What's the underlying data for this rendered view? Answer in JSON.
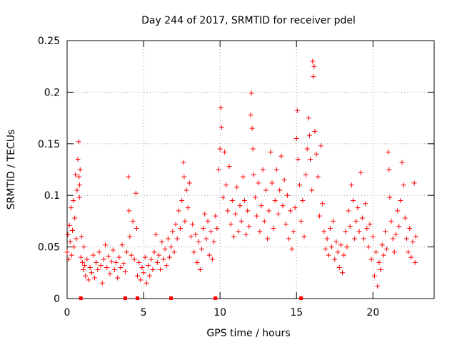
{
  "chart_data": {
    "type": "scatter",
    "title": "Day 244 of 2017, SRMTID for receiver pdel",
    "xlabel": "GPS time / hours",
    "ylabel": "SRMTID / TECUs",
    "xlim": [
      0,
      24
    ],
    "ylim": [
      0,
      0.25
    ],
    "xticks": [
      0,
      5,
      10,
      15,
      20
    ],
    "xtick_labels": [
      "0",
      "5",
      "10",
      "15",
      "20"
    ],
    "yticks": [
      0,
      0.05,
      0.1,
      0.15,
      0.2,
      0.25
    ],
    "ytick_labels": [
      "0",
      "0.05",
      "0.1",
      "0.15",
      "0.2",
      "0.25"
    ],
    "grid": true,
    "series": [
      {
        "name": "SRMTID",
        "marker": "plus",
        "color": "#ff0000",
        "points": [
          [
            0.0,
            0.045
          ],
          [
            0.05,
            0.062
          ],
          [
            0.1,
            0.038
          ],
          [
            0.15,
            0.071
          ],
          [
            0.2,
            0.055
          ],
          [
            0.25,
            0.088
          ],
          [
            0.3,
            0.042
          ],
          [
            0.35,
            0.066
          ],
          [
            0.4,
            0.095
          ],
          [
            0.45,
            0.05
          ],
          [
            0.5,
            0.078
          ],
          [
            0.55,
            0.12
          ],
          [
            0.6,
            0.058
          ],
          [
            0.65,
            0.105
          ],
          [
            0.7,
            0.135
          ],
          [
            0.75,
            0.152
          ],
          [
            0.78,
            0.118
          ],
          [
            0.8,
            0.098
          ],
          [
            0.82,
            0.11
          ],
          [
            0.85,
            0.125
          ],
          [
            0.9,
            0.04
          ],
          [
            0.95,
            0.06
          ],
          [
            1.0,
            0.035
          ],
          [
            1.05,
            0.028
          ],
          [
            1.1,
            0.05
          ],
          [
            1.15,
            0.032
          ],
          [
            1.2,
            0.022
          ],
          [
            1.3,
            0.038
          ],
          [
            1.4,
            0.018
          ],
          [
            1.5,
            0.03
          ],
          [
            1.6,
            0.025
          ],
          [
            1.7,
            0.042
          ],
          [
            1.8,
            0.02
          ],
          [
            1.9,
            0.035
          ],
          [
            2.0,
            0.028
          ],
          [
            2.1,
            0.045
          ],
          [
            2.2,
            0.032
          ],
          [
            2.3,
            0.015
          ],
          [
            2.4,
            0.038
          ],
          [
            2.5,
            0.052
          ],
          [
            2.6,
            0.03
          ],
          [
            2.7,
            0.041
          ],
          [
            2.8,
            0.024
          ],
          [
            2.9,
            0.036
          ],
          [
            3.0,
            0.047
          ],
          [
            3.1,
            0.028
          ],
          [
            3.2,
            0.035
          ],
          [
            3.3,
            0.02
          ],
          [
            3.4,
            0.04
          ],
          [
            3.5,
            0.03
          ],
          [
            3.6,
            0.052
          ],
          [
            3.7,
            0.034
          ],
          [
            3.8,
            0.026
          ],
          [
            3.9,
            0.045
          ],
          [
            4.0,
            0.118
          ],
          [
            4.05,
            0.085
          ],
          [
            4.1,
            0.06
          ],
          [
            4.2,
            0.042
          ],
          [
            4.3,
            0.075
          ],
          [
            4.4,
            0.038
          ],
          [
            4.5,
            0.102
          ],
          [
            4.55,
            0.068
          ],
          [
            4.6,
            0.022
          ],
          [
            4.7,
            0.035
          ],
          [
            4.8,
            0.018
          ],
          [
            4.9,
            0.03
          ],
          [
            5.0,
            0.025
          ],
          [
            5.1,
            0.04
          ],
          [
            5.2,
            0.015
          ],
          [
            5.3,
            0.032
          ],
          [
            5.4,
            0.022
          ],
          [
            5.5,
            0.038
          ],
          [
            5.6,
            0.028
          ],
          [
            5.7,
            0.045
          ],
          [
            5.8,
            0.062
          ],
          [
            5.9,
            0.035
          ],
          [
            6.0,
            0.042
          ],
          [
            6.1,
            0.028
          ],
          [
            6.2,
            0.055
          ],
          [
            6.3,
            0.038
          ],
          [
            6.4,
            0.048
          ],
          [
            6.5,
            0.032
          ],
          [
            6.6,
            0.058
          ],
          [
            6.7,
            0.04
          ],
          [
            6.8,
            0.05
          ],
          [
            6.9,
            0.065
          ],
          [
            7.0,
            0.045
          ],
          [
            7.1,
            0.072
          ],
          [
            7.2,
            0.058
          ],
          [
            7.3,
            0.085
          ],
          [
            7.4,
            0.068
          ],
          [
            7.5,
            0.095
          ],
          [
            7.6,
            0.132
          ],
          [
            7.65,
            0.118
          ],
          [
            7.7,
            0.075
          ],
          [
            7.8,
            0.105
          ],
          [
            7.9,
            0.088
          ],
          [
            8.0,
            0.112
          ],
          [
            8.1,
            0.06
          ],
          [
            8.2,
            0.072
          ],
          [
            8.3,
            0.045
          ],
          [
            8.4,
            0.062
          ],
          [
            8.5,
            0.035
          ],
          [
            8.6,
            0.055
          ],
          [
            8.7,
            0.028
          ],
          [
            8.8,
            0.048
          ],
          [
            8.9,
            0.068
          ],
          [
            9.0,
            0.082
          ],
          [
            9.1,
            0.058
          ],
          [
            9.2,
            0.075
          ],
          [
            9.3,
            0.042
          ],
          [
            9.4,
            0.065
          ],
          [
            9.5,
            0.038
          ],
          [
            9.6,
            0.055
          ],
          [
            9.7,
            0.08
          ],
          [
            9.8,
            0.068
          ],
          [
            9.9,
            0.125
          ],
          [
            10.0,
            0.145
          ],
          [
            10.05,
            0.185
          ],
          [
            10.1,
            0.166
          ],
          [
            10.2,
            0.098
          ],
          [
            10.3,
            0.142
          ],
          [
            10.4,
            0.11
          ],
          [
            10.5,
            0.085
          ],
          [
            10.6,
            0.128
          ],
          [
            10.7,
            0.072
          ],
          [
            10.8,
            0.095
          ],
          [
            10.9,
            0.06
          ],
          [
            11.0,
            0.082
          ],
          [
            11.1,
            0.108
          ],
          [
            11.2,
            0.065
          ],
          [
            11.3,
            0.09
          ],
          [
            11.4,
            0.075
          ],
          [
            11.5,
            0.118
          ],
          [
            11.6,
            0.095
          ],
          [
            11.7,
            0.062
          ],
          [
            11.8,
            0.085
          ],
          [
            11.9,
            0.07
          ],
          [
            12.0,
            0.178
          ],
          [
            12.05,
            0.199
          ],
          [
            12.1,
            0.165
          ],
          [
            12.15,
            0.145
          ],
          [
            12.2,
            0.12
          ],
          [
            12.3,
            0.098
          ],
          [
            12.4,
            0.08
          ],
          [
            12.5,
            0.112
          ],
          [
            12.6,
            0.065
          ],
          [
            12.7,
            0.09
          ],
          [
            12.8,
            0.125
          ],
          [
            12.9,
            0.075
          ],
          [
            13.0,
            0.105
          ],
          [
            13.1,
            0.058
          ],
          [
            13.2,
            0.085
          ],
          [
            13.3,
            0.142
          ],
          [
            13.4,
            0.112
          ],
          [
            13.5,
            0.068
          ],
          [
            13.6,
            0.095
          ],
          [
            13.7,
            0.125
          ],
          [
            13.8,
            0.082
          ],
          [
            13.9,
            0.105
          ],
          [
            14.0,
            0.138
          ],
          [
            14.1,
            0.09
          ],
          [
            14.2,
            0.115
          ],
          [
            14.3,
            0.072
          ],
          [
            14.4,
            0.1
          ],
          [
            14.5,
            0.058
          ],
          [
            14.6,
            0.085
          ],
          [
            14.7,
            0.048
          ],
          [
            14.8,
            0.065
          ],
          [
            14.9,
            0.088
          ],
          [
            15.0,
            0.155
          ],
          [
            15.05,
            0.182
          ],
          [
            15.1,
            0.135
          ],
          [
            15.2,
            0.11
          ],
          [
            15.3,
            0.075
          ],
          [
            15.4,
            0.095
          ],
          [
            15.5,
            0.06
          ],
          [
            15.6,
            0.12
          ],
          [
            15.7,
            0.145
          ],
          [
            15.8,
            0.175
          ],
          [
            15.85,
            0.158
          ],
          [
            15.9,
            0.135
          ],
          [
            16.0,
            0.105
          ],
          [
            16.05,
            0.23
          ],
          [
            16.1,
            0.215
          ],
          [
            16.15,
            0.225
          ],
          [
            16.2,
            0.162
          ],
          [
            16.3,
            0.14
          ],
          [
            16.4,
            0.118
          ],
          [
            16.5,
            0.08
          ],
          [
            16.6,
            0.148
          ],
          [
            16.7,
            0.092
          ],
          [
            16.8,
            0.065
          ],
          [
            16.9,
            0.048
          ],
          [
            17.0,
            0.058
          ],
          [
            17.1,
            0.042
          ],
          [
            17.2,
            0.068
          ],
          [
            17.3,
            0.05
          ],
          [
            17.4,
            0.075
          ],
          [
            17.5,
            0.038
          ],
          [
            17.6,
            0.055
          ],
          [
            17.7,
            0.045
          ],
          [
            17.8,
            0.03
          ],
          [
            17.9,
            0.052
          ],
          [
            18.0,
            0.025
          ],
          [
            18.1,
            0.042
          ],
          [
            18.2,
            0.065
          ],
          [
            18.3,
            0.05
          ],
          [
            18.4,
            0.085
          ],
          [
            18.5,
            0.07
          ],
          [
            18.6,
            0.11
          ],
          [
            18.7,
            0.095
          ],
          [
            18.8,
            0.058
          ],
          [
            18.9,
            0.075
          ],
          [
            19.0,
            0.088
          ],
          [
            19.1,
            0.065
          ],
          [
            19.2,
            0.122
          ],
          [
            19.3,
            0.078
          ],
          [
            19.4,
            0.058
          ],
          [
            19.5,
            0.092
          ],
          [
            19.6,
            0.068
          ],
          [
            19.7,
            0.05
          ],
          [
            19.8,
            0.072
          ],
          [
            19.9,
            0.038
          ],
          [
            20.0,
            0.06
          ],
          [
            20.1,
            0.022
          ],
          [
            20.2,
            0.045
          ],
          [
            20.3,
            0.012
          ],
          [
            20.4,
            0.035
          ],
          [
            20.5,
            0.028
          ],
          [
            20.6,
            0.052
          ],
          [
            20.7,
            0.042
          ],
          [
            20.8,
            0.065
          ],
          [
            20.9,
            0.048
          ],
          [
            21.0,
            0.142
          ],
          [
            21.05,
            0.125
          ],
          [
            21.1,
            0.098
          ],
          [
            21.2,
            0.075
          ],
          [
            21.3,
            0.058
          ],
          [
            21.4,
            0.045
          ],
          [
            21.5,
            0.062
          ],
          [
            21.6,
            0.085
          ],
          [
            21.7,
            0.07
          ],
          [
            21.8,
            0.095
          ],
          [
            21.9,
            0.132
          ],
          [
            22.0,
            0.11
          ],
          [
            22.1,
            0.078
          ],
          [
            22.2,
            0.058
          ],
          [
            22.3,
            0.045
          ],
          [
            22.4,
            0.068
          ],
          [
            22.5,
            0.04
          ],
          [
            22.6,
            0.055
          ],
          [
            22.7,
            0.112
          ],
          [
            22.75,
            0.035
          ],
          [
            22.8,
            0.06
          ]
        ]
      }
    ],
    "axis_markers": {
      "name": "data-gap markers",
      "x": [
        0.9,
        3.8,
        4.6,
        6.8,
        9.7,
        15.3
      ]
    }
  }
}
